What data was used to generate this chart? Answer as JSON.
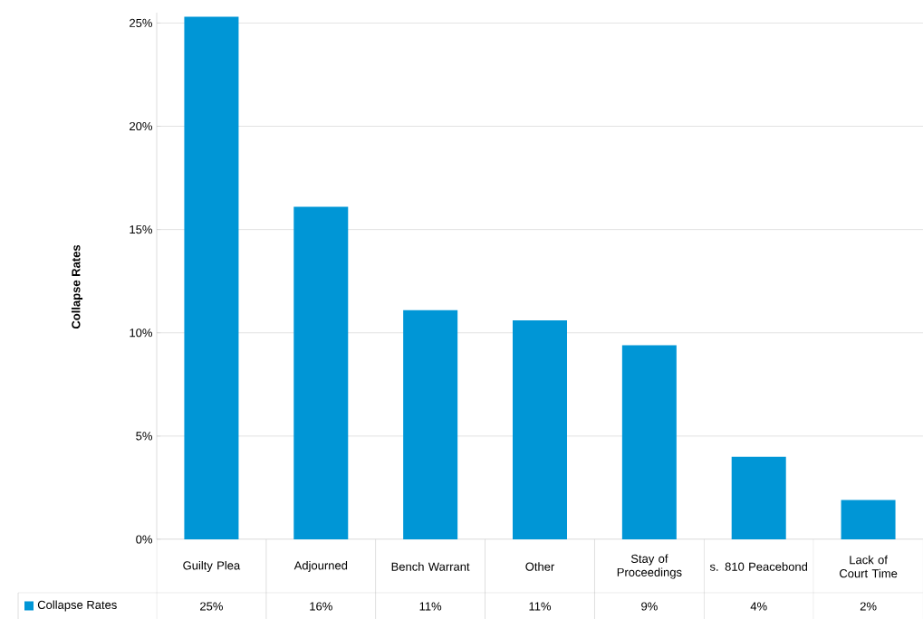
{
  "chart_data": {
    "type": "bar",
    "ylabel": "Collapse Rates",
    "categories": [
      "Guilty Plea",
      "Adjourned",
      "Bench Warrant",
      "Other",
      "Stay of Proceedings",
      "s. 810 Peacebond",
      "Lack of Court Time"
    ],
    "series": [
      {
        "name": "Collapse Rates",
        "color": "#0096d6",
        "values": [
          25.3,
          16.1,
          11.1,
          10.6,
          9.4,
          4.0,
          1.9
        ],
        "value_labels": [
          "25%",
          "16%",
          "11%",
          "11%",
          "9%",
          "4%",
          "2%"
        ]
      }
    ],
    "ylim": [
      0,
      25.5
    ],
    "yticks": [
      {
        "value": 0,
        "label": "0%"
      },
      {
        "value": 5,
        "label": "5%"
      },
      {
        "value": 10,
        "label": "10%"
      },
      {
        "value": 15,
        "label": "15%"
      },
      {
        "value": 20,
        "label": "20%"
      },
      {
        "value": 25,
        "label": "25%"
      }
    ],
    "grid": "y",
    "legend": "bottom left"
  }
}
